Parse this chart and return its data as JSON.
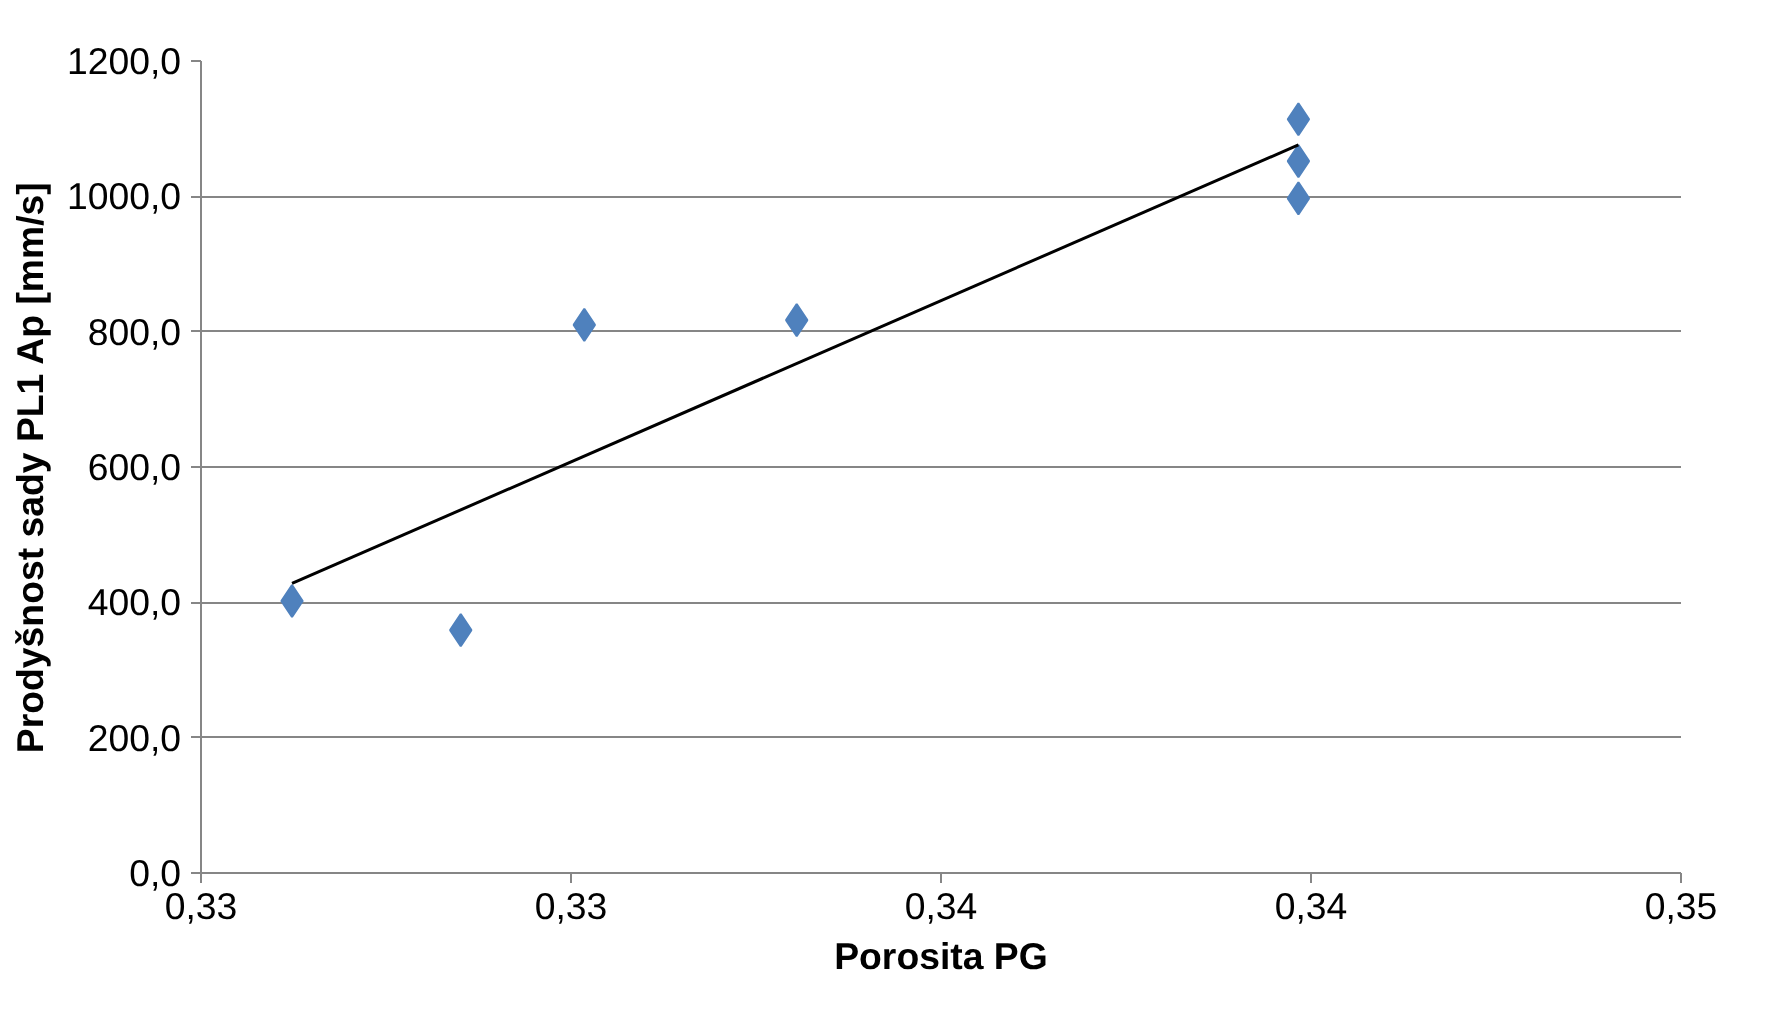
{
  "chart_data": {
    "type": "scatter",
    "xlabel": "Porosita PG",
    "ylabel": "Prodyšnost sady PL1 Ap [mm/s]",
    "xlim": [
      0.325,
      0.345
    ],
    "ylim": [
      0,
      1200
    ],
    "xticks": [
      {
        "value": 0.325,
        "label": "0,33"
      },
      {
        "value": 0.33,
        "label": "0,33"
      },
      {
        "value": 0.335,
        "label": "0,34"
      },
      {
        "value": 0.34,
        "label": "0,34"
      },
      {
        "value": 0.345,
        "label": "0,35"
      }
    ],
    "yticks": [
      {
        "value": 0,
        "label": "0,0"
      },
      {
        "value": 200,
        "label": "200,0"
      },
      {
        "value": 400,
        "label": "400,0"
      },
      {
        "value": 600,
        "label": "600,0"
      },
      {
        "value": 800,
        "label": "800,0"
      },
      {
        "value": 1000,
        "label": "1000,0"
      },
      {
        "value": 1200,
        "label": "1200,0"
      }
    ],
    "grid": "y",
    "series": [
      {
        "color": "#4f81bd",
        "marker": "diamond",
        "x": [
          0.32623,
          0.32851,
          0.33018,
          0.33305,
          0.33983,
          0.33983,
          0.33983
        ],
        "values": [
          402,
          359,
          810,
          817,
          1114,
          1052,
          997
        ]
      },
      {
        "type": "line",
        "color": "#000000",
        "marker": "none",
        "line_style": "solid",
        "x": [
          0.32623,
          0.33983
        ],
        "values": [
          428,
          1076
        ]
      }
    ]
  }
}
